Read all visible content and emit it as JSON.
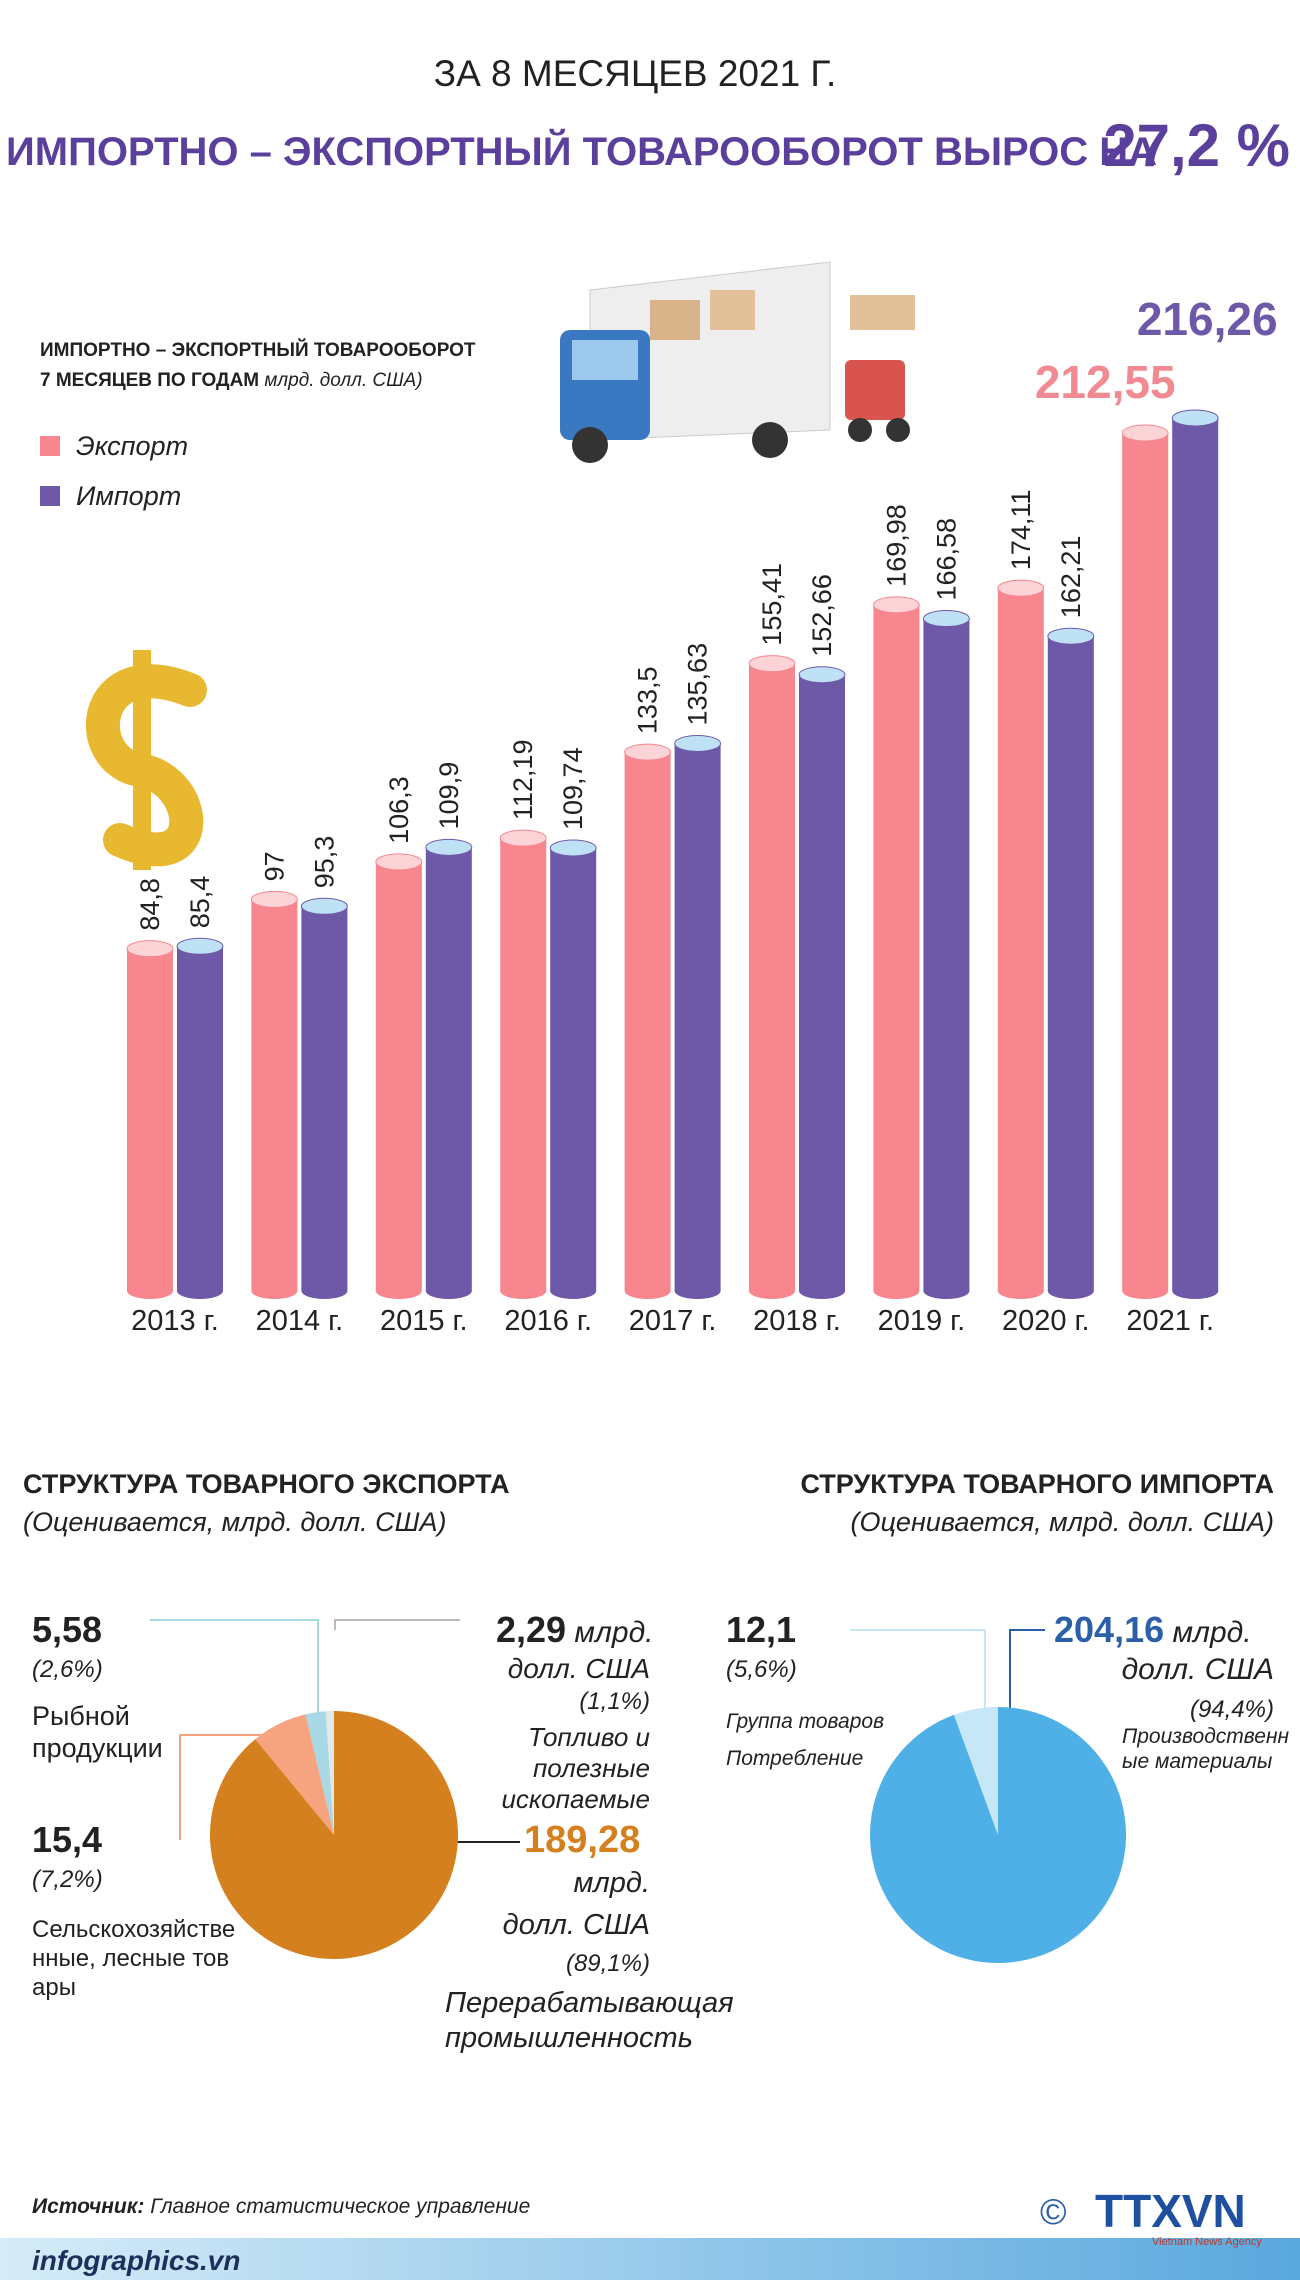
{
  "header": {
    "subtitle": "ЗА 8 МЕСЯЦЕВ 2021 Г.",
    "title": "ИМПОРТНО – ЭКСПОРТНЫЙ ТОВАРООБОРОТ ВЫРОС НА",
    "highlight": "27,2 %"
  },
  "chart_data": [
    {
      "type": "bar",
      "title": "ИМПОРТНО – ЭКСПОРТНЫЙ ТОВАРООБОРОТ",
      "subtitle": "7 МЕСЯЦЕВ ПО ГОДАМ",
      "unit": "млрд. долл. США)",
      "categories": [
        "2013 г.",
        "2014 г.",
        "2015 г.",
        "2016 г.",
        "2017 г.",
        "2018 г.",
        "2019 г.",
        "2020 г.",
        "2021 г."
      ],
      "series": [
        {
          "name": "Экспорт",
          "color": "#f7868f",
          "cap_color": "#fcd3d6",
          "values": [
            84.8,
            97,
            106.3,
            112.19,
            133.5,
            155.41,
            169.98,
            174.11,
            212.55
          ],
          "value_labels": [
            "84,8",
            "97",
            "106,3",
            "112,19",
            "133,5",
            "155,41",
            "169,98",
            "174,11",
            "212,55"
          ]
        },
        {
          "name": "Импорт",
          "color": "#6e58a8",
          "cap_color": "#bfe1f6",
          "values": [
            85.4,
            95.3,
            109.9,
            109.74,
            135.63,
            152.66,
            166.58,
            162.21,
            216.26
          ],
          "value_labels": [
            "85,4",
            "95,3",
            "109,9",
            "109,74",
            "135,63",
            "152,66",
            "166,58",
            "162,21",
            "216,26"
          ]
        }
      ]
    },
    {
      "type": "pie",
      "title": "СТРУКТУРА ТОВАРНОГО ЭКСПОРТА",
      "subtitle": "(Оценивается, млрд. долл. США)",
      "unit": "млрд.",
      "unit2": "долл. США",
      "categories": [
        "Топливо и полезные ископаемые",
        "Рыбной продукции",
        "Сельскохозяйственные, лесные товары",
        "Перерабатывающая промышленность"
      ],
      "values": [
        2.29,
        5.58,
        15.4,
        189.28
      ],
      "value_labels": [
        "2,29",
        "5,58",
        "15,4",
        "189,28"
      ],
      "percents": [
        1.1,
        2.6,
        7.2,
        89.1
      ],
      "percent_labels": [
        "(1,1%)",
        "(2,6%)",
        "(7,2%)",
        "(89,1%)"
      ],
      "colors": [
        "#dfe8ea",
        "#a8d8e4",
        "#f6a47f",
        "#d4801e"
      ]
    },
    {
      "type": "pie",
      "title": "СТРУКТУРА ТОВАРНОГО ИМПОРТА",
      "subtitle": "(Оценивается, млрд. долл. США)",
      "unit": "млрд.",
      "unit2": "долл. США",
      "categories": [
        "Группа товаров Потребление",
        "Производственные материалы"
      ],
      "values": [
        12.1,
        204.16
      ],
      "value_labels": [
        "12,1",
        "204,16"
      ],
      "percents": [
        5.6,
        94.4
      ],
      "percent_labels": [
        "(5,6%)",
        "(94,4%)"
      ],
      "colors": [
        "#c6e7f8",
        "#4fb0e8"
      ]
    }
  ],
  "footer": {
    "source_label": "Источник:",
    "source": "Главное статистическое управление",
    "site": "infographics.vn",
    "copyright": "©",
    "logo": "TTXVN",
    "agency": "Vietnam News Agency"
  }
}
